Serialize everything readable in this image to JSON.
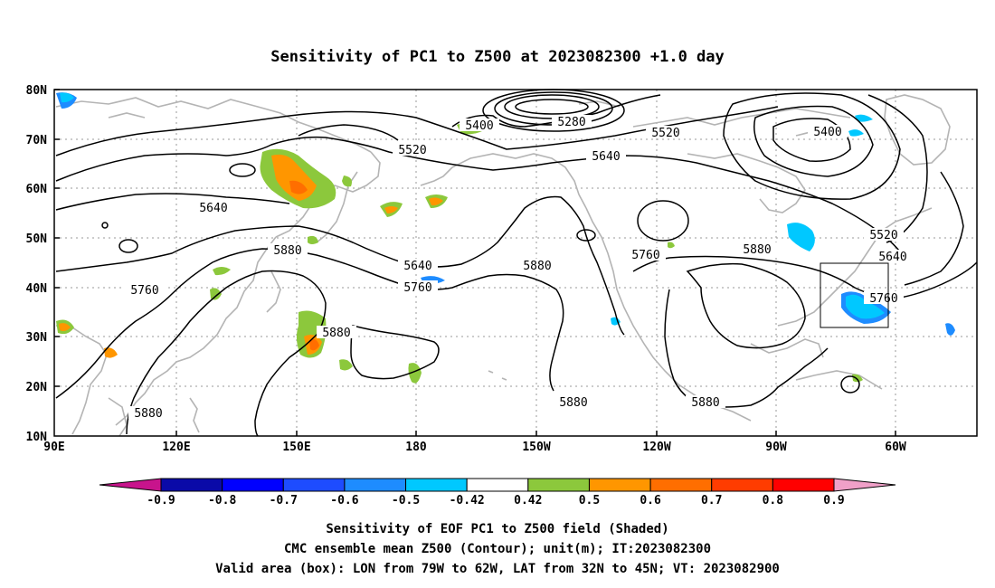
{
  "title": "Sensitivity of PC1 to Z500 at 2023082300 +1.0 day",
  "lat_ticks": [
    "80N",
    "70N",
    "60N",
    "50N",
    "40N",
    "30N",
    "20N",
    "10N"
  ],
  "lon_ticks": [
    "90E",
    "120E",
    "150E",
    "180",
    "150W",
    "120W",
    "90W",
    "60W"
  ],
  "contour_labels": [
    {
      "text": "5280",
      "kind": "low"
    },
    {
      "text": "5400",
      "kind": "contour"
    },
    {
      "text": "5400",
      "kind": "contour"
    },
    {
      "text": "5520",
      "kind": "contour"
    },
    {
      "text": "5520",
      "kind": "contour"
    },
    {
      "text": "5520",
      "kind": "contour"
    },
    {
      "text": "5640",
      "kind": "contour"
    },
    {
      "text": "5640",
      "kind": "contour"
    },
    {
      "text": "5640",
      "kind": "contour"
    },
    {
      "text": "5640",
      "kind": "contour"
    },
    {
      "text": "5760",
      "kind": "contour"
    },
    {
      "text": "5760",
      "kind": "contour"
    },
    {
      "text": "5760",
      "kind": "contour"
    },
    {
      "text": "5760",
      "kind": "contour"
    },
    {
      "text": "5880",
      "kind": "contour"
    },
    {
      "text": "5880",
      "kind": "contour"
    },
    {
      "text": "5880",
      "kind": "contour"
    },
    {
      "text": "5880",
      "kind": "contour"
    },
    {
      "text": "5880",
      "kind": "contour"
    },
    {
      "text": "5880",
      "kind": "contour"
    }
  ],
  "valid_area_box": {
    "lon_from": "79W",
    "lon_to": "62W",
    "lat_from": "32N",
    "lat_to": "45N"
  },
  "colorbar": {
    "labels": [
      "-0.9",
      "-0.8",
      "-0.7",
      "-0.6",
      "-0.5",
      "-0.42",
      "0.42",
      "0.5",
      "0.6",
      "0.7",
      "0.8",
      "0.9"
    ],
    "colors": [
      "#0a0aa8",
      "#0000ff",
      "#1e4cff",
      "#1e8cff",
      "#00c8ff",
      "#ffffff",
      "#8cc83c",
      "#ff9600",
      "#ff6e00",
      "#ff3c00",
      "#ff0000"
    ],
    "low_end_color": "#c8148c",
    "high_end_color": "#f0a0c8"
  },
  "footer": {
    "line1": "Sensitivity of EOF PC1 to Z500 field (Shaded)",
    "line2": "CMC ensemble mean Z500 (Contour); unit(m); IT:2023082300",
    "line3": "Valid area (box): LON from 79W to 62W, LAT from 32N to 45N; VT: 2023082900"
  }
}
